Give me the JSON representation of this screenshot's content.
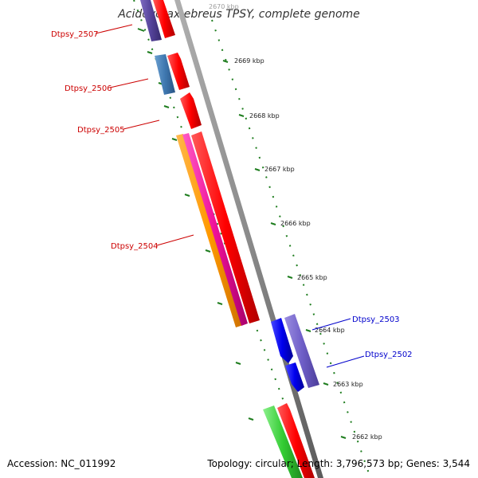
{
  "title": "Acidovorax ebreus TPSY, complete genome",
  "footer": {
    "accession": "Accession: NC_011992",
    "summary": "Topology: circular; Length: 3,796,573 bp; Genes: 3,544"
  },
  "colors": {
    "backbone": "#888888",
    "tick": "#1e7d1e",
    "forward_label": "#cc0000",
    "reverse_label": "#0000cc"
  },
  "scale_labels": [
    "2670 kbp",
    "2669 kbp",
    "2668 kbp",
    "2667 kbp",
    "2666 kbp",
    "2665 kbp",
    "2664 kbp",
    "2663 kbp",
    "2662 kbp"
  ],
  "gene_labels": [
    {
      "text": "Dtpsy_2507",
      "strand": "forward"
    },
    {
      "text": "Dtpsy_2506",
      "strand": "forward"
    },
    {
      "text": "Dtpsy_2505",
      "strand": "forward"
    },
    {
      "text": "Dtpsy_2504",
      "strand": "forward"
    },
    {
      "text": "Dtpsy_2503",
      "strand": "reverse"
    },
    {
      "text": "Dtpsy_2502",
      "strand": "reverse"
    }
  ]
}
